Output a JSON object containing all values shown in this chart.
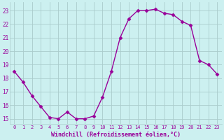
{
  "hours": [
    0,
    1,
    2,
    3,
    4,
    5,
    6,
    7,
    8,
    9,
    10,
    11,
    12,
    13,
    14,
    15,
    16,
    17,
    18,
    19,
    20,
    21,
    22,
    23
  ],
  "values": [
    18.5,
    17.7,
    16.7,
    15.9,
    15.1,
    15.0,
    15.5,
    15.0,
    15.0,
    15.2,
    16.6,
    18.5,
    21.0,
    22.4,
    23.0,
    23.0,
    23.1,
    22.8,
    22.7,
    22.2,
    21.9,
    19.3,
    19.0,
    18.3
  ],
  "line_color": "#990099",
  "marker": "D",
  "marker_size": 2.5,
  "bg_color": "#ccf0f0",
  "grid_color": "#aacccc",
  "xlabel": "Windchill (Refroidissement éolien,°C)",
  "xlabel_color": "#990099",
  "tick_color": "#990099",
  "ylim": [
    14.6,
    23.6
  ],
  "yticks": [
    15,
    16,
    17,
    18,
    19,
    20,
    21,
    22,
    23
  ],
  "xlim": [
    -0.5,
    23.5
  ]
}
